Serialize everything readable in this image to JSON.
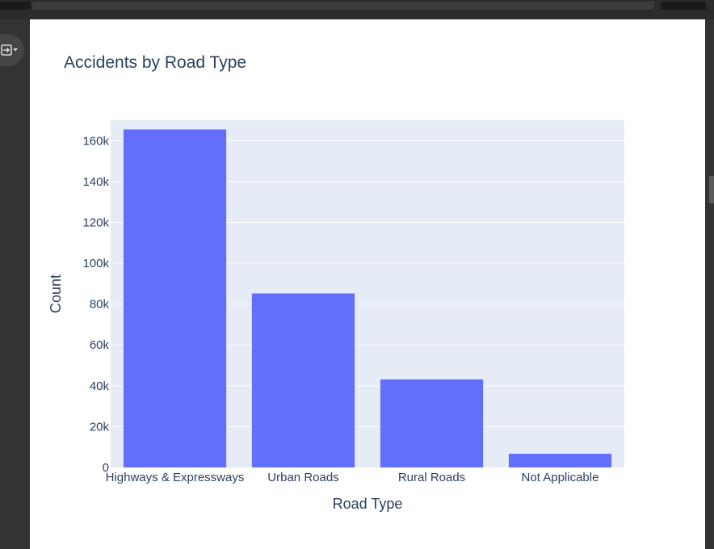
{
  "chart_data": {
    "type": "bar",
    "title": "Accidents by Road Type",
    "xlabel": "Road Type",
    "ylabel": "Count",
    "categories": [
      "Highways & Expressways",
      "Urban Roads",
      "Rural Roads",
      "Not Applicable"
    ],
    "values": [
      165500,
      85200,
      43100,
      6700
    ],
    "ylim": [
      0,
      170000
    ],
    "yticks": [
      0,
      20000,
      40000,
      60000,
      80000,
      100000,
      120000,
      140000,
      160000
    ],
    "ytick_labels": [
      "0",
      "20k",
      "40k",
      "60k",
      "80k",
      "100k",
      "120k",
      "140k",
      "160k"
    ],
    "grid": true,
    "bar_color": "#636efa",
    "plot_bg": "#e5ecf6",
    "text_color": "#2a3f5f"
  },
  "ui": {
    "sidebar_toggle_icon": "sidebar-toggle-icon"
  }
}
